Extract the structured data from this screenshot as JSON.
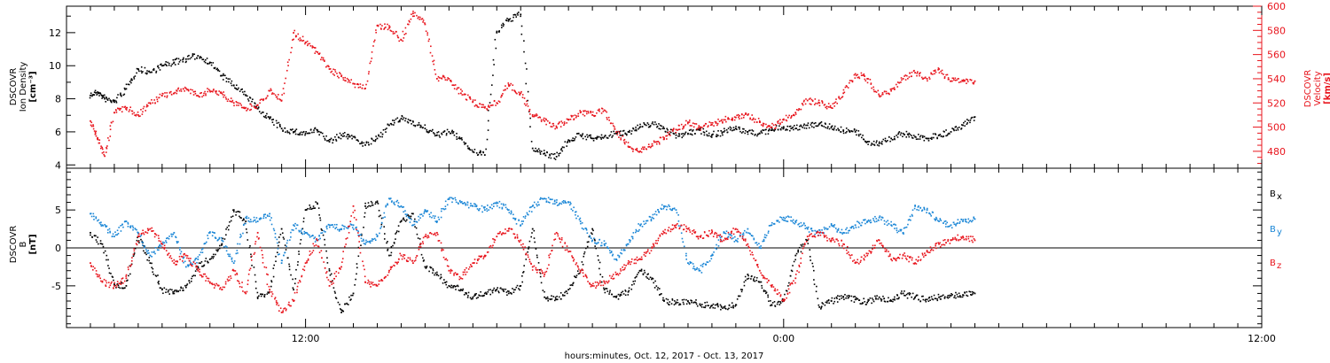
{
  "chart_data": [
    {
      "type": "scatter",
      "panel": "top",
      "left_axis": {
        "label_lines": [
          "DSCOVR",
          "Ion Density",
          "[cm⁻³]"
        ],
        "ylim": [
          3.8,
          13.6
        ],
        "ticks": [
          4,
          6,
          8,
          10,
          12
        ],
        "color": "#000000"
      },
      "right_axis": {
        "label_lines": [
          "DSCOVR",
          "Velocity",
          "[km/s]"
        ],
        "ylim": [
          466,
          600
        ],
        "ticks": [
          480,
          500,
          520,
          540,
          560,
          580,
          600
        ],
        "color": "#e8141c"
      },
      "series": [
        {
          "axis": "left",
          "color": "#000000",
          "x": [
            0.0,
            0.3,
            0.6,
            1.0,
            1.5,
            2.0,
            2.5,
            3.0,
            3.5,
            4.0,
            4.5,
            5.0,
            5.5,
            6.0,
            6.5,
            7.0,
            7.5,
            8.0,
            8.5,
            9.0,
            9.5,
            10.0,
            10.5,
            11.0,
            11.5,
            12.0,
            12.5,
            13.0,
            13.5,
            14.0,
            14.5,
            15.0,
            15.5,
            16.0,
            16.5,
            17.0,
            17.5,
            18.0,
            18.5,
            19.0,
            19.5,
            20.0,
            20.5,
            21.0,
            21.5,
            22.0,
            22.5,
            23.0,
            23.5,
            24.0,
            24.5,
            25.0,
            25.5,
            26.0,
            26.5,
            27.0,
            27.5,
            28.0,
            28.5,
            29.0,
            29.5,
            30.0,
            30.5,
            31.0,
            31.5,
            32.0,
            32.5,
            33.0,
            33.5,
            34.0,
            34.5,
            35.0,
            35.5,
            36.0,
            36.5,
            37.0
          ],
          "y": [
            8.2,
            8.4,
            8.0,
            7.8,
            8.6,
            9.8,
            9.6,
            10.0,
            10.2,
            10.4,
            10.6,
            10.2,
            9.4,
            8.8,
            8.2,
            7.4,
            6.8,
            6.2,
            6.0,
            5.9,
            6.1,
            5.4,
            5.8,
            5.7,
            5.2,
            5.6,
            6.4,
            6.8,
            6.6,
            6.2,
            5.8,
            6.0,
            5.6,
            4.8,
            4.6,
            12.0,
            12.8,
            13.1,
            5.0,
            4.7,
            4.5,
            5.5,
            5.8,
            5.6,
            5.7,
            5.9,
            6.0,
            6.3,
            6.5,
            6.2,
            5.8,
            5.9,
            6.1,
            5.8,
            6.0,
            6.2,
            6.0,
            5.9,
            6.1,
            6.3,
            6.2,
            6.4,
            6.5,
            6.3,
            6.1,
            6.0,
            5.4,
            5.3,
            5.6,
            5.9,
            5.7,
            5.6,
            5.8,
            6.0,
            6.4,
            6.9
          ]
        },
        {
          "axis": "right",
          "color": "#e8141c",
          "x": [
            0.0,
            0.3,
            0.6,
            1.0,
            1.5,
            2.0,
            2.5,
            3.0,
            3.5,
            4.0,
            4.5,
            5.0,
            5.5,
            6.0,
            6.5,
            7.0,
            7.5,
            8.0,
            8.5,
            9.0,
            9.5,
            10.0,
            10.5,
            11.0,
            11.5,
            12.0,
            12.5,
            13.0,
            13.5,
            14.0,
            14.5,
            15.0,
            15.5,
            16.0,
            16.5,
            17.0,
            17.5,
            18.0,
            18.5,
            19.0,
            19.5,
            20.0,
            20.5,
            21.0,
            21.5,
            22.0,
            22.5,
            23.0,
            23.5,
            24.0,
            24.5,
            25.0,
            25.5,
            26.0,
            26.5,
            27.0,
            27.5,
            28.0,
            28.5,
            29.0,
            29.5,
            30.0,
            30.5,
            31.0,
            31.5,
            32.0,
            32.5,
            33.0,
            33.5,
            34.0,
            34.5,
            35.0,
            35.5,
            36.0,
            36.5,
            37.0
          ],
          "y": [
            505,
            490,
            476,
            512,
            516,
            510,
            520,
            526,
            528,
            532,
            526,
            530,
            528,
            520,
            516,
            518,
            530,
            522,
            578,
            570,
            562,
            548,
            542,
            536,
            532,
            584,
            582,
            572,
            594,
            585,
            540,
            540,
            528,
            521,
            516,
            520,
            535,
            528,
            510,
            505,
            500,
            506,
            512,
            510,
            514,
            496,
            484,
            480,
            486,
            490,
            498,
            504,
            500,
            502,
            506,
            508,
            510,
            504,
            500,
            506,
            512,
            522,
            520,
            516,
            528,
            544,
            540,
            526,
            530,
            540,
            545,
            540,
            548,
            538,
            538,
            538
          ]
        }
      ]
    },
    {
      "type": "scatter",
      "panel": "bottom",
      "left_axis": {
        "label_lines": [
          "DSCOVR",
          "B",
          "[nT]"
        ],
        "ylim": [
          -10.5,
          10.5
        ],
        "ticks": [
          -5,
          0,
          5
        ],
        "color": "#000000"
      },
      "zero_line": true,
      "series": [
        {
          "name": "Bₓ",
          "color": "#000000",
          "x": [
            0.0,
            0.5,
            1.0,
            1.5,
            2.0,
            2.5,
            3.0,
            3.5,
            4.0,
            4.5,
            5.0,
            5.5,
            6.0,
            6.5,
            7.0,
            7.5,
            8.0,
            8.5,
            9.0,
            9.5,
            10.0,
            10.5,
            11.0,
            11.5,
            12.0,
            12.5,
            13.0,
            13.5,
            14.0,
            14.5,
            15.0,
            15.5,
            16.0,
            16.5,
            17.0,
            17.5,
            18.0,
            18.5,
            19.0,
            19.5,
            20.0,
            20.5,
            21.0,
            21.5,
            22.0,
            22.5,
            23.0,
            23.5,
            24.0,
            24.5,
            25.0,
            25.5,
            26.0,
            26.5,
            27.0,
            27.5,
            28.0,
            28.5,
            29.0,
            29.5,
            30.0,
            30.5,
            31.0,
            31.5,
            32.0,
            32.5,
            33.0,
            33.5,
            34.0,
            34.5,
            35.0,
            35.5,
            36.0,
            36.5,
            37.0
          ],
          "y": [
            2.0,
            0.5,
            -4.8,
            -5.0,
            1.5,
            -2.0,
            -5.5,
            -6.0,
            -5.2,
            -2.5,
            -1.5,
            0.5,
            5.0,
            3.5,
            -6.5,
            -5.8,
            2.5,
            -5.5,
            5.0,
            5.8,
            -3.0,
            -8.5,
            -6.0,
            5.5,
            6.0,
            -1.0,
            3.5,
            4.5,
            -2.5,
            -3.5,
            -5.0,
            -5.5,
            -6.5,
            -6.0,
            -5.5,
            -6.0,
            -5.0,
            2.5,
            -6.5,
            -6.8,
            -5.5,
            -3.0,
            2.5,
            -5.5,
            -6.5,
            -5.8,
            -3.0,
            -4.0,
            -7.0,
            -7.2,
            -7.0,
            -7.4,
            -7.6,
            -7.8,
            -7.5,
            -3.5,
            -4.5,
            -7.5,
            -7.0,
            -1.0,
            1.0,
            -7.8,
            -7.0,
            -6.5,
            -6.8,
            -7.2,
            -6.5,
            -7.0,
            -6.0,
            -6.5,
            -6.8,
            -6.5,
            -6.3,
            -6.2,
            -6.0
          ]
        },
        {
          "name": "Bᵧ",
          "color": "#1a86d6",
          "x": [
            0.0,
            0.5,
            1.0,
            1.5,
            2.0,
            2.5,
            3.0,
            3.5,
            4.0,
            4.5,
            5.0,
            5.5,
            6.0,
            6.5,
            7.0,
            7.5,
            8.0,
            8.5,
            9.0,
            9.5,
            10.0,
            10.5,
            11.0,
            11.5,
            12.0,
            12.5,
            13.0,
            13.5,
            14.0,
            14.5,
            15.0,
            15.5,
            16.0,
            16.5,
            17.0,
            17.5,
            18.0,
            18.5,
            19.0,
            19.5,
            20.0,
            20.5,
            21.0,
            21.5,
            22.0,
            22.5,
            23.0,
            23.5,
            24.0,
            24.5,
            25.0,
            25.5,
            26.0,
            26.5,
            27.0,
            27.5,
            28.0,
            28.5,
            29.0,
            29.5,
            30.0,
            30.5,
            31.0,
            31.5,
            32.0,
            32.5,
            33.0,
            33.5,
            34.0,
            34.5,
            35.0,
            35.5,
            36.0,
            36.5,
            37.0
          ],
          "y": [
            4.5,
            3.0,
            1.5,
            3.5,
            2.0,
            -1.0,
            0.5,
            2.0,
            -2.5,
            -1.5,
            2.0,
            1.0,
            -2.0,
            4.0,
            3.5,
            4.5,
            -2.0,
            3.0,
            2.0,
            1.0,
            3.0,
            2.5,
            3.0,
            0.5,
            1.5,
            6.5,
            5.5,
            3.0,
            5.0,
            3.5,
            6.5,
            6.0,
            5.5,
            5.0,
            6.0,
            5.0,
            3.0,
            5.5,
            6.5,
            6.0,
            6.0,
            3.5,
            1.0,
            0.5,
            -1.5,
            0.5,
            3.0,
            4.0,
            5.5,
            5.0,
            -2.0,
            -3.0,
            -1.0,
            2.0,
            1.0,
            2.5,
            0.0,
            3.0,
            4.0,
            3.5,
            2.5,
            2.0,
            3.0,
            2.0,
            3.0,
            3.5,
            4.0,
            3.0,
            2.0,
            5.5,
            5.0,
            3.5,
            3.0,
            3.5,
            3.8
          ]
        },
        {
          "name": "B_z",
          "color": "#e8141c",
          "x": [
            0.0,
            0.5,
            1.0,
            1.5,
            2.0,
            2.5,
            3.0,
            3.5,
            4.0,
            4.5,
            5.0,
            5.5,
            6.0,
            6.5,
            7.0,
            7.5,
            8.0,
            8.5,
            9.0,
            9.5,
            10.0,
            10.5,
            11.0,
            11.5,
            12.0,
            12.5,
            13.0,
            13.5,
            14.0,
            14.5,
            15.0,
            15.5,
            16.0,
            16.5,
            17.0,
            17.5,
            18.0,
            18.5,
            19.0,
            19.5,
            20.0,
            20.5,
            21.0,
            21.5,
            22.0,
            22.5,
            23.0,
            23.5,
            24.0,
            24.5,
            25.0,
            25.5,
            26.0,
            26.5,
            27.0,
            27.5,
            28.0,
            28.5,
            29.0,
            29.5,
            30.0,
            30.5,
            31.0,
            31.5,
            32.0,
            32.5,
            33.0,
            33.5,
            34.0,
            34.5,
            35.0,
            35.5,
            36.0,
            36.5,
            37.0
          ],
          "y": [
            -2.0,
            -4.5,
            -5.0,
            -4.0,
            1.5,
            2.5,
            0.5,
            -2.0,
            -1.0,
            -3.0,
            -4.5,
            -5.5,
            -3.0,
            -6.0,
            2.0,
            -5.5,
            -8.5,
            -7.0,
            -2.0,
            1.0,
            -5.0,
            -2.5,
            5.5,
            -4.5,
            -5.0,
            -3.0,
            -1.0,
            -2.0,
            1.5,
            2.0,
            -3.0,
            -4.0,
            -2.0,
            -1.0,
            1.5,
            2.5,
            1.0,
            -2.5,
            -3.5,
            2.0,
            -0.5,
            -3.0,
            -5.0,
            -4.5,
            -3.5,
            -2.0,
            -1.5,
            0.0,
            2.0,
            3.0,
            2.5,
            1.5,
            2.0,
            1.0,
            2.5,
            0.5,
            -3.0,
            -5.0,
            -7.0,
            -4.0,
            1.5,
            2.0,
            1.0,
            0.5,
            -2.0,
            -1.0,
            1.0,
            -1.5,
            -1.0,
            -2.0,
            -0.5,
            0.5,
            1.0,
            1.5,
            1.0
          ]
        }
      ]
    }
  ],
  "x_axis": {
    "title": "hours:minutes, Oct. 12, 2017 - Oct. 13, 2017",
    "xlim": [
      -1,
      49
    ],
    "major_ticks": [
      {
        "x": 9,
        "label": "12:00"
      },
      {
        "x": 29,
        "label": "0:00"
      },
      {
        "x": 49,
        "label": "12:00"
      }
    ]
  },
  "legend": {
    "entries": [
      {
        "label": "B",
        "sub": "x",
        "color": "#000000"
      },
      {
        "label": "B",
        "sub": "y",
        "color": "#1a86d6"
      },
      {
        "label": "B",
        "sub": "z",
        "color": "#e8141c"
      }
    ]
  }
}
